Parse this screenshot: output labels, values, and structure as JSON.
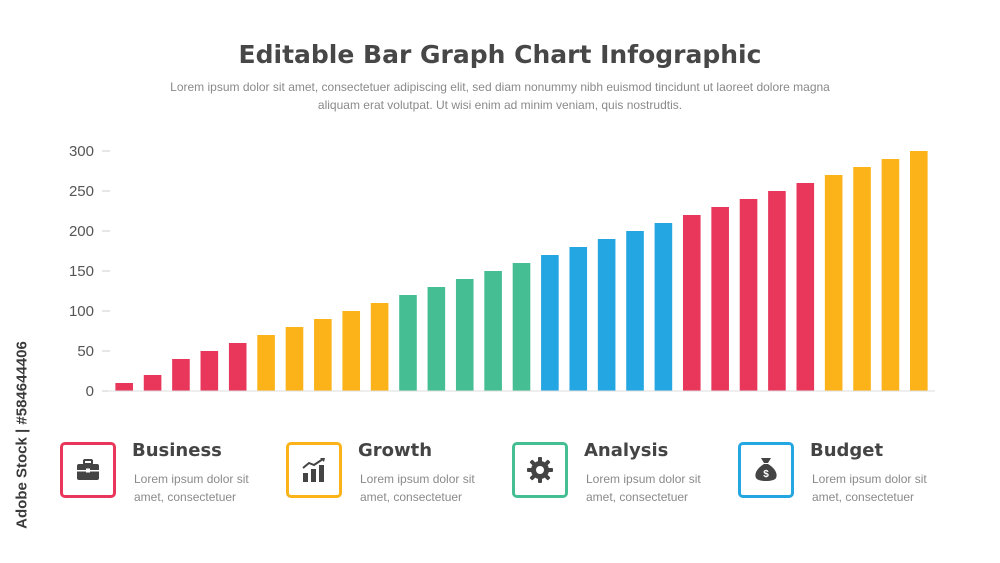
{
  "page": {
    "title": "Editable Bar Graph Chart Infographic",
    "subtitle": "Lorem ipsum dolor sit amet, consectetuer adipiscing elit, sed diam nonummy nibh euismod tincidunt ut laoreet dolore magna aliquam erat volutpat. Ut wisi enim ad minim veniam, quis nostrudtis."
  },
  "watermark": "Adobe Stock | #584644406",
  "chart_data": {
    "type": "bar",
    "title": "",
    "xlabel": "",
    "ylabel": "",
    "ylim": [
      0,
      300
    ],
    "yticks": [
      0,
      50,
      100,
      150,
      200,
      250,
      300
    ],
    "grid": false,
    "values": [
      10,
      20,
      40,
      50,
      60,
      70,
      80,
      90,
      100,
      110,
      120,
      130,
      140,
      150,
      160,
      170,
      180,
      190,
      200,
      210,
      220,
      230,
      240,
      250,
      260,
      270,
      280,
      290,
      300
    ],
    "bar_colors": [
      "#e8375b",
      "#e8375b",
      "#e8375b",
      "#e8375b",
      "#e8375b",
      "#fbb319",
      "#fbb319",
      "#fbb319",
      "#fbb319",
      "#fbb319",
      "#45be93",
      "#45be93",
      "#45be93",
      "#45be93",
      "#45be93",
      "#23a6e2",
      "#23a6e2",
      "#23a6e2",
      "#23a6e2",
      "#23a6e2",
      "#e8375b",
      "#e8375b",
      "#e8375b",
      "#e8375b",
      "#e8375b",
      "#fbb319",
      "#fbb319",
      "#fbb319",
      "#fbb319"
    ]
  },
  "cards": [
    {
      "title": "Business",
      "desc": "Lorem ipsum dolor sit amet, consectetuer",
      "color": "#e8375b",
      "icon": "briefcase-icon"
    },
    {
      "title": "Growth",
      "desc": "Lorem ipsum dolor sit amet, consectetuer",
      "color": "#fbb319",
      "icon": "growth-chart-icon"
    },
    {
      "title": "Analysis",
      "desc": "Lorem ipsum dolor sit amet, consectetuer",
      "color": "#45be93",
      "icon": "gear-icon"
    },
    {
      "title": "Budget",
      "desc": "Lorem ipsum dolor sit amet, consectetuer",
      "color": "#23a6e2",
      "icon": "money-bag-icon"
    }
  ]
}
